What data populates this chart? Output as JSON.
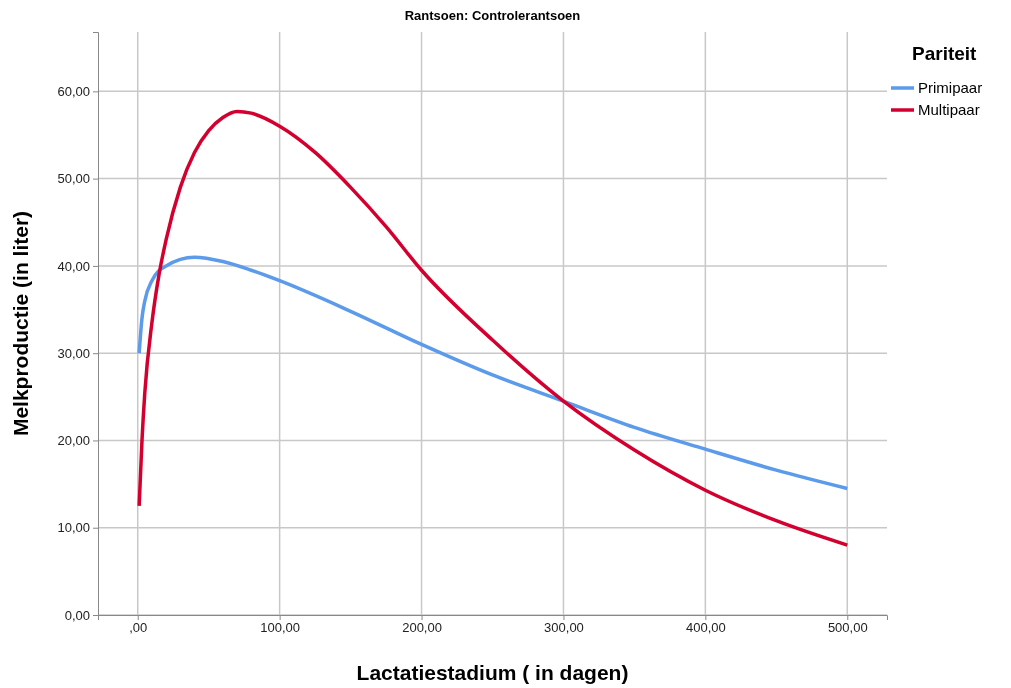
{
  "chart_data": {
    "type": "line",
    "title": "Rantsoen: Controlerantsoen",
    "xlabel": "Lactatiestadium ( in dagen)",
    "ylabel": "Melkproductie (in liter)",
    "legend_title": "Pariteit",
    "legend": "top right",
    "grid": true,
    "line_style": "solid",
    "marker": "none",
    "xlim": [
      -28,
      528
    ],
    "xticks": [
      {
        "value": 0,
        "label": ",00"
      },
      {
        "value": 100,
        "label": "100,00"
      },
      {
        "value": 200,
        "label": "200,00"
      },
      {
        "value": 300,
        "label": "300,00"
      },
      {
        "value": 400,
        "label": "400,00"
      },
      {
        "value": 500,
        "label": "500,00"
      }
    ],
    "ylim": [
      0,
      66.8
    ],
    "yticks": [
      {
        "value": 0,
        "label": "0,00"
      },
      {
        "value": 10,
        "label": "10,00"
      },
      {
        "value": 20,
        "label": "20,00"
      },
      {
        "value": 30,
        "label": "30,00"
      },
      {
        "value": 40,
        "label": "40,00"
      },
      {
        "value": 50,
        "label": "50,00"
      },
      {
        "value": 60,
        "label": "60,00"
      }
    ],
    "series": [
      {
        "name": "Primipaar",
        "color": "#5b9bea",
        "x": [
          1,
          3,
          5,
          10,
          20,
          40,
          60,
          80,
          100,
          150,
          200,
          250,
          300,
          350,
          400,
          450,
          500
        ],
        "values": [
          30,
          34,
          36,
          38.3,
          40,
          41,
          40.5,
          39.5,
          38.3,
          34.8,
          31,
          27.5,
          24.5,
          21.5,
          19,
          16.6,
          14.5
        ]
      },
      {
        "name": "Multipaar",
        "color": "#d3002f",
        "x": [
          1,
          3,
          5,
          10,
          15,
          20,
          30,
          40,
          50,
          60,
          70,
          80,
          100,
          125,
          150,
          175,
          200,
          250,
          300,
          350,
          400,
          450,
          500
        ],
        "values": [
          12.5,
          20,
          25.5,
          33.5,
          39,
          43,
          49,
          53,
          55.5,
          57,
          57.7,
          57.5,
          56,
          53,
          49,
          44.5,
          39.5,
          31.5,
          24.5,
          18.9,
          14.3,
          10.8,
          8
        ]
      }
    ]
  }
}
